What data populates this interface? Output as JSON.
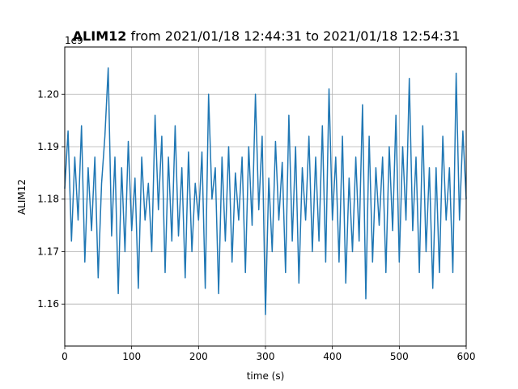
{
  "chart_data": {
    "type": "line",
    "title_bold": "ALIM12",
    "title_rest": " from 2021/01/18 12:44:31 to 2021/01/18 12:54:31",
    "xlabel": "time (s)",
    "ylabel": "ALIM12",
    "offset_label": "1e9",
    "xlim": [
      0,
      600
    ],
    "ylim": [
      1.152,
      1.209
    ],
    "xticks": [
      0,
      100,
      200,
      300,
      400,
      500,
      600
    ],
    "xtick_labels": [
      "0",
      "100",
      "200",
      "300",
      "400",
      "500",
      "600"
    ],
    "yticks": [
      1.16,
      1.17,
      1.18,
      1.19,
      1.2
    ],
    "ytick_labels": [
      "1.16",
      "1.17",
      "1.18",
      "1.19",
      "1.20"
    ],
    "grid": true,
    "line_color": "#1f77b4",
    "series": [
      {
        "x": [
          0,
          5,
          10,
          15,
          20,
          25,
          30,
          35,
          40,
          45,
          50,
          55,
          60,
          65,
          70,
          75,
          80,
          85,
          90,
          95,
          100,
          105,
          110,
          115,
          120,
          125,
          130,
          135,
          140,
          145,
          150,
          155,
          160,
          165,
          170,
          175,
          180,
          185,
          190,
          195,
          200,
          205,
          210,
          215,
          220,
          225,
          230,
          235,
          240,
          245,
          250,
          255,
          260,
          265,
          270,
          275,
          280,
          285,
          290,
          295,
          300,
          305,
          310,
          315,
          320,
          325,
          330,
          335,
          340,
          345,
          350,
          355,
          360,
          365,
          370,
          375,
          380,
          385,
          390,
          395,
          400,
          405,
          410,
          415,
          420,
          425,
          430,
          435,
          440,
          445,
          450,
          455,
          460,
          465,
          470,
          475,
          480,
          485,
          490,
          495,
          500,
          505,
          510,
          515,
          520,
          525,
          530,
          535,
          540,
          545,
          550,
          555,
          560,
          565,
          570,
          575,
          580,
          585,
          590,
          595,
          600
        ],
        "y": [
          1.182,
          1.193,
          1.172,
          1.188,
          1.176,
          1.194,
          1.168,
          1.186,
          1.174,
          1.188,
          1.165,
          1.183,
          1.192,
          1.205,
          1.173,
          1.188,
          1.162,
          1.186,
          1.17,
          1.191,
          1.174,
          1.184,
          1.163,
          1.188,
          1.176,
          1.183,
          1.17,
          1.196,
          1.178,
          1.192,
          1.166,
          1.188,
          1.172,
          1.194,
          1.173,
          1.186,
          1.165,
          1.189,
          1.17,
          1.183,
          1.176,
          1.189,
          1.163,
          1.2,
          1.18,
          1.186,
          1.162,
          1.188,
          1.172,
          1.19,
          1.168,
          1.185,
          1.176,
          1.188,
          1.166,
          1.19,
          1.175,
          1.2,
          1.178,
          1.192,
          1.158,
          1.184,
          1.17,
          1.191,
          1.176,
          1.187,
          1.166,
          1.196,
          1.172,
          1.19,
          1.164,
          1.186,
          1.176,
          1.192,
          1.17,
          1.188,
          1.172,
          1.194,
          1.168,
          1.201,
          1.176,
          1.188,
          1.168,
          1.192,
          1.164,
          1.184,
          1.17,
          1.188,
          1.172,
          1.198,
          1.161,
          1.192,
          1.168,
          1.186,
          1.175,
          1.188,
          1.166,
          1.19,
          1.174,
          1.196,
          1.168,
          1.19,
          1.176,
          1.203,
          1.174,
          1.188,
          1.166,
          1.194,
          1.17,
          1.186,
          1.163,
          1.186,
          1.166,
          1.192,
          1.176,
          1.186,
          1.166,
          1.204,
          1.176,
          1.193,
          1.18
        ]
      }
    ]
  }
}
